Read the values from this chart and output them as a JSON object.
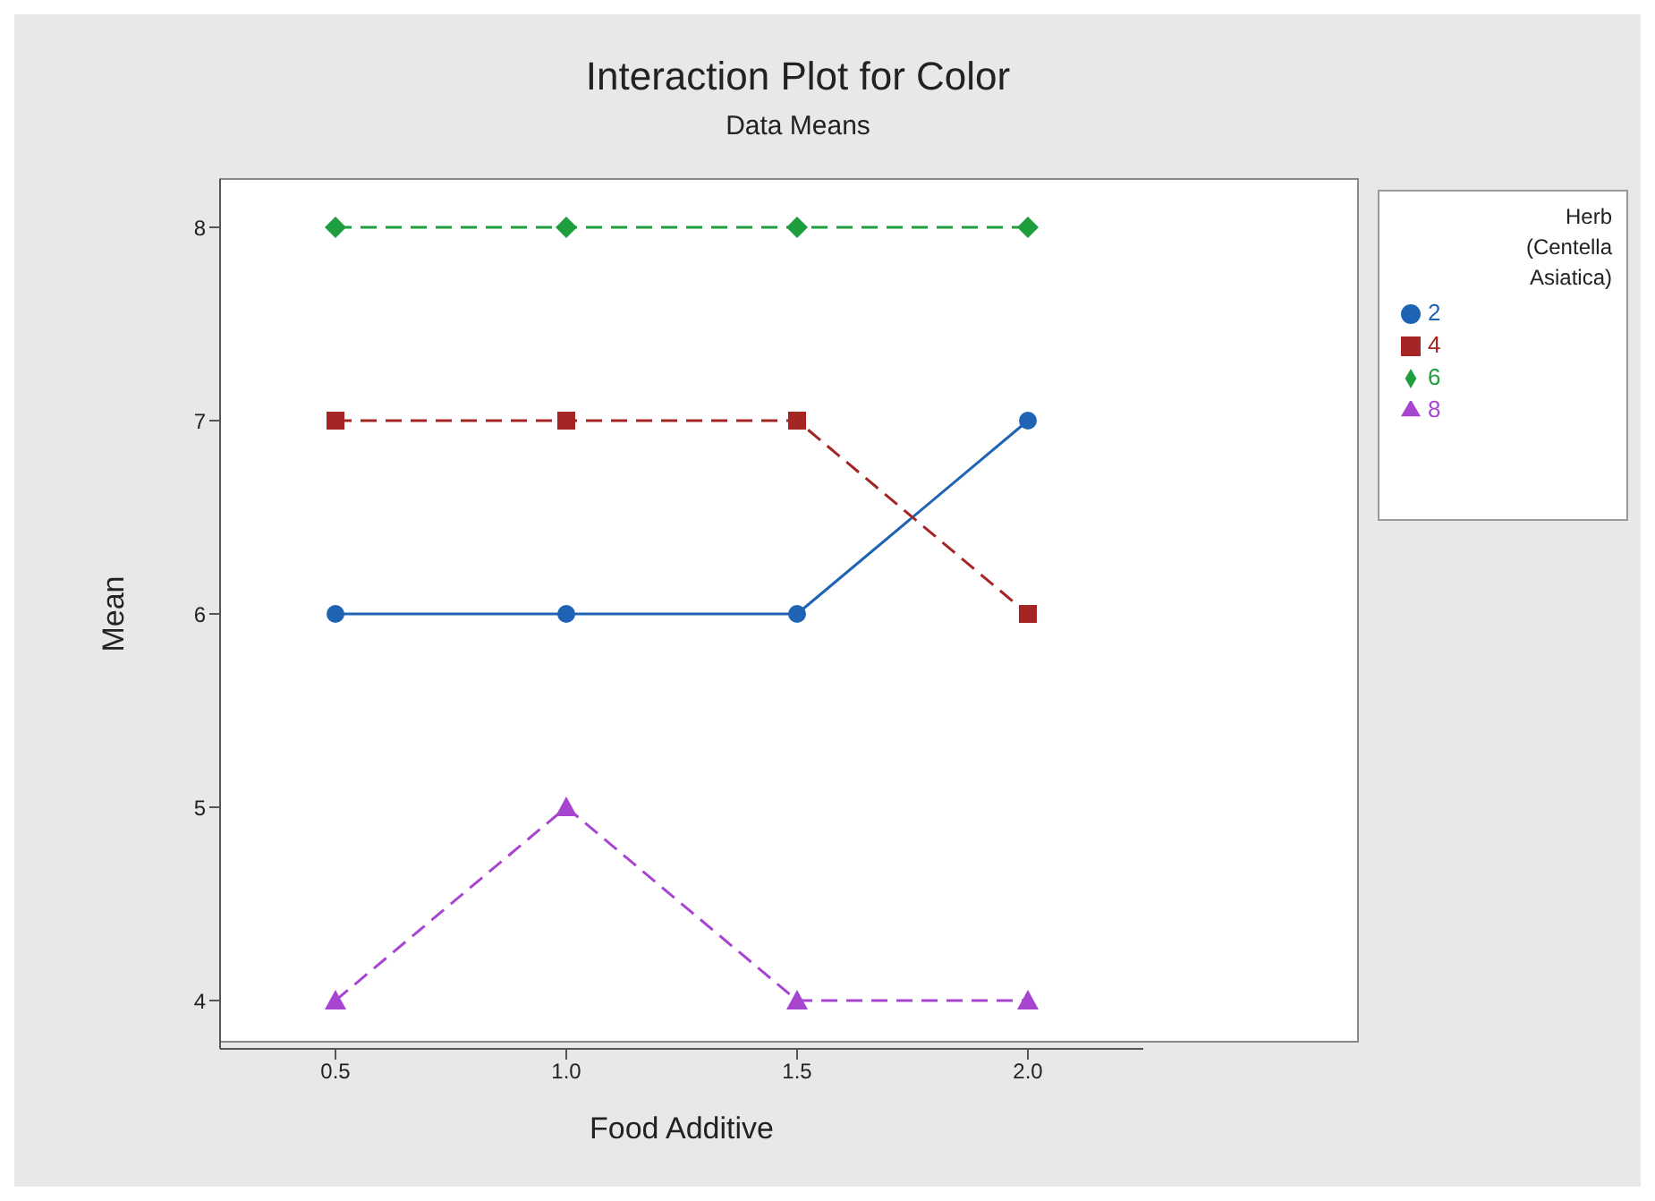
{
  "chart_data": {
    "type": "line",
    "title": "Interaction Plot for Color",
    "subtitle": "Data Means",
    "xlabel": "Food Additive",
    "ylabel": "Mean",
    "legend_title": "Herb (Centella Asiatica)",
    "x": [
      0.5,
      1.0,
      1.5,
      2.0
    ],
    "xlim": [
      0.25,
      2.25
    ],
    "xticks": [
      {
        "value": 0.5,
        "label": "0.5"
      },
      {
        "value": 1,
        "label": "1.0"
      },
      {
        "value": 1.5,
        "label": "1.5"
      },
      {
        "value": 2,
        "label": "2.0"
      }
    ],
    "ylim": [
      3.75,
      8.25
    ],
    "yticks": [
      4,
      5,
      6,
      7,
      8
    ],
    "grid": false,
    "legend": "right",
    "series": [
      {
        "name": "2",
        "color": "#1f64b4",
        "values": [
          6,
          6,
          6,
          7
        ],
        "marker": "circle",
        "line_style": "solid"
      },
      {
        "name": "4",
        "color": "#a52424",
        "values": [
          7,
          7,
          7,
          6
        ],
        "marker": "square",
        "line_style": "dashed"
      },
      {
        "name": "6",
        "color": "#1e9e3e",
        "values": [
          8,
          8,
          8,
          8
        ],
        "marker": "diamond",
        "line_style": "dashed"
      },
      {
        "name": "8",
        "color": "#a845d0",
        "values": [
          4,
          5,
          4,
          4
        ],
        "marker": "triangle",
        "line_style": "dashed"
      }
    ]
  }
}
